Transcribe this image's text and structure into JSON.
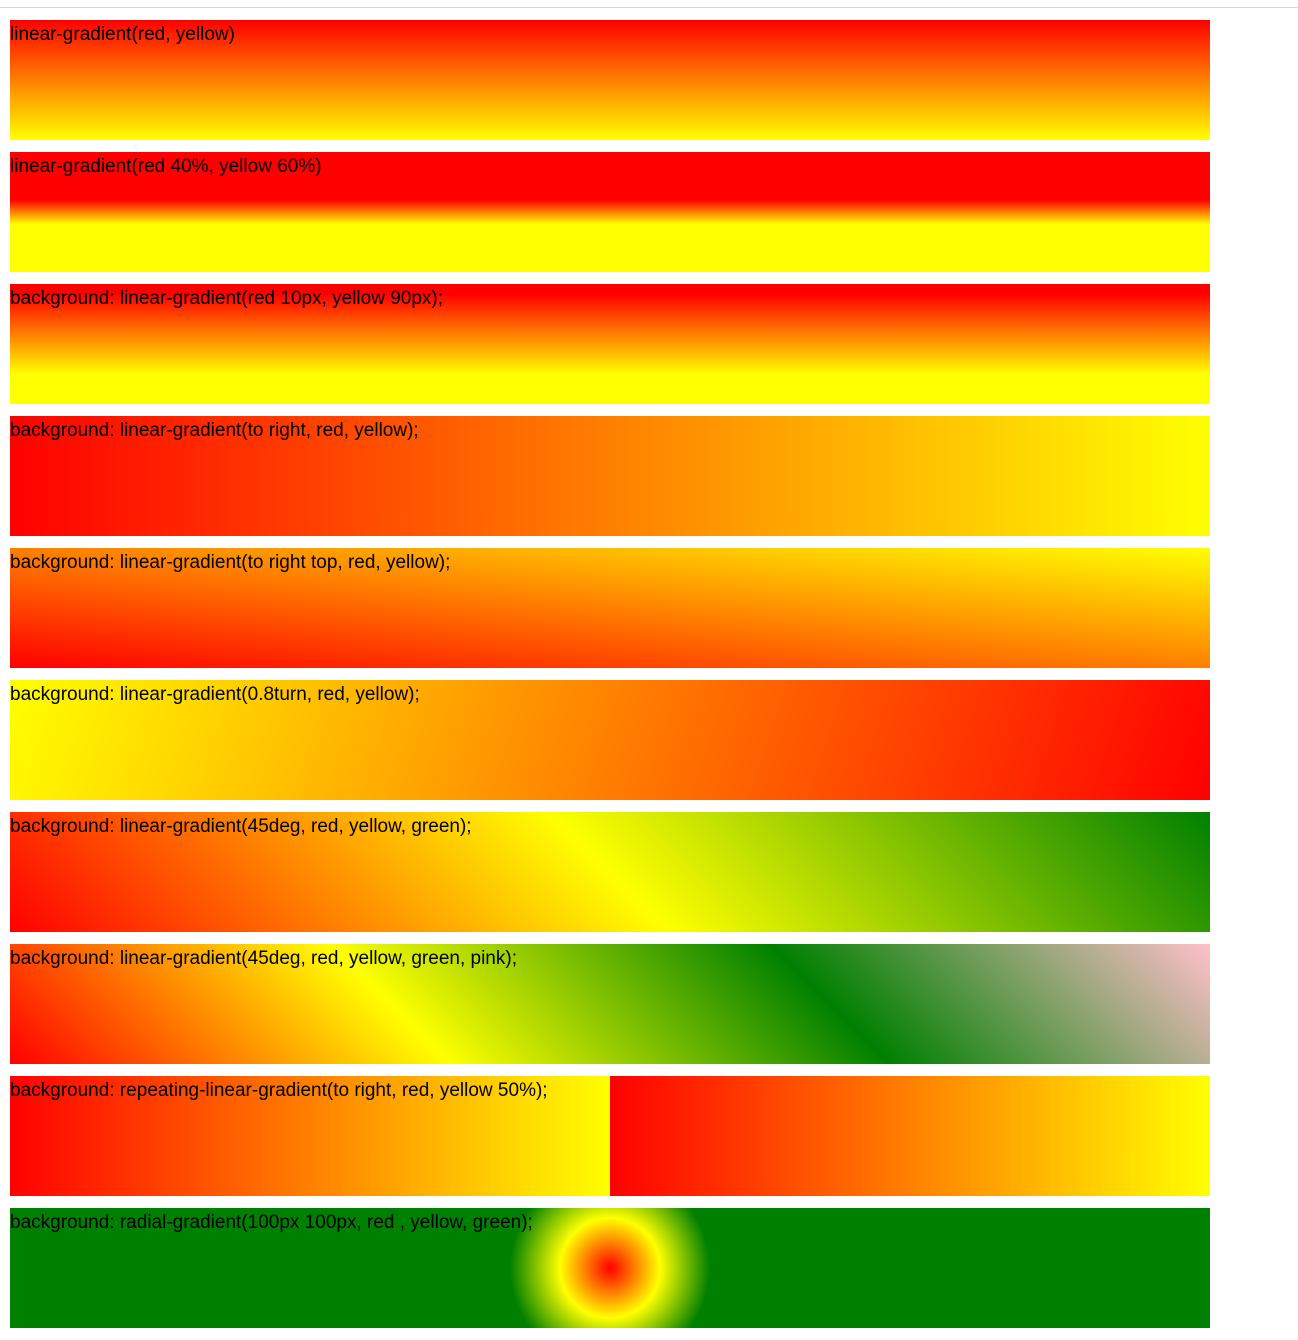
{
  "boxes": [
    {
      "label": "linear-gradient(red, yellow)"
    },
    {
      "label": "linear-gradient(red 40%, yellow 60%)"
    },
    {
      "label": "background: linear-gradient(red 10px, yellow 90px);"
    },
    {
      "label": "background: linear-gradient(to right, red, yellow);"
    },
    {
      "label": "background: linear-gradient(to right top, red, yellow);"
    },
    {
      "label": "background: linear-gradient(0.8turn, red, yellow);"
    },
    {
      "label": "background: linear-gradient(45deg, red, yellow, green);"
    },
    {
      "label": "background: linear-gradient(45deg, red, yellow, green, pink);"
    },
    {
      "label": "background: repeating-linear-gradient(to right, red, yellow 50%);"
    },
    {
      "label": "background: radial-gradient(100px 100px, red , yellow, green);"
    }
  ],
  "colors": {
    "red": "#ff0000",
    "yellow": "#ffff00",
    "green": "#008000",
    "pink": "#ffc0cb"
  }
}
